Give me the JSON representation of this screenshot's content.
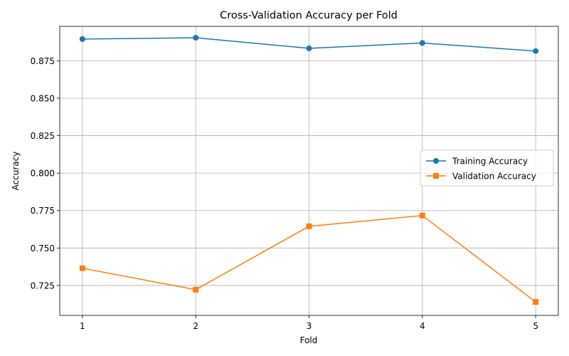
{
  "chart_data": {
    "type": "line",
    "title": "Cross-Validation Accuracy per Fold",
    "xlabel": "Fold",
    "ylabel": "Accuracy",
    "x": [
      1,
      2,
      3,
      4,
      5
    ],
    "xlim": [
      0.8,
      5.2
    ],
    "ylim": [
      0.705,
      0.898
    ],
    "xticks": [
      1,
      2,
      3,
      4,
      5
    ],
    "yticks": [
      0.725,
      0.75,
      0.775,
      0.8,
      0.825,
      0.85,
      0.875
    ],
    "ytick_labels": [
      "0.725",
      "0.750",
      "0.775",
      "0.800",
      "0.825",
      "0.850",
      "0.875"
    ],
    "grid": true,
    "legend_position": "center-right",
    "series": [
      {
        "name": "Training Accuracy",
        "values": [
          0.8895,
          0.8904,
          0.8833,
          0.8869,
          0.8815
        ],
        "color": "#1f77b4",
        "marker": "circle"
      },
      {
        "name": "Validation Accuracy",
        "values": [
          0.7365,
          0.7222,
          0.7645,
          0.7717,
          0.714
        ],
        "color": "#ff7f0e",
        "marker": "square"
      }
    ]
  }
}
